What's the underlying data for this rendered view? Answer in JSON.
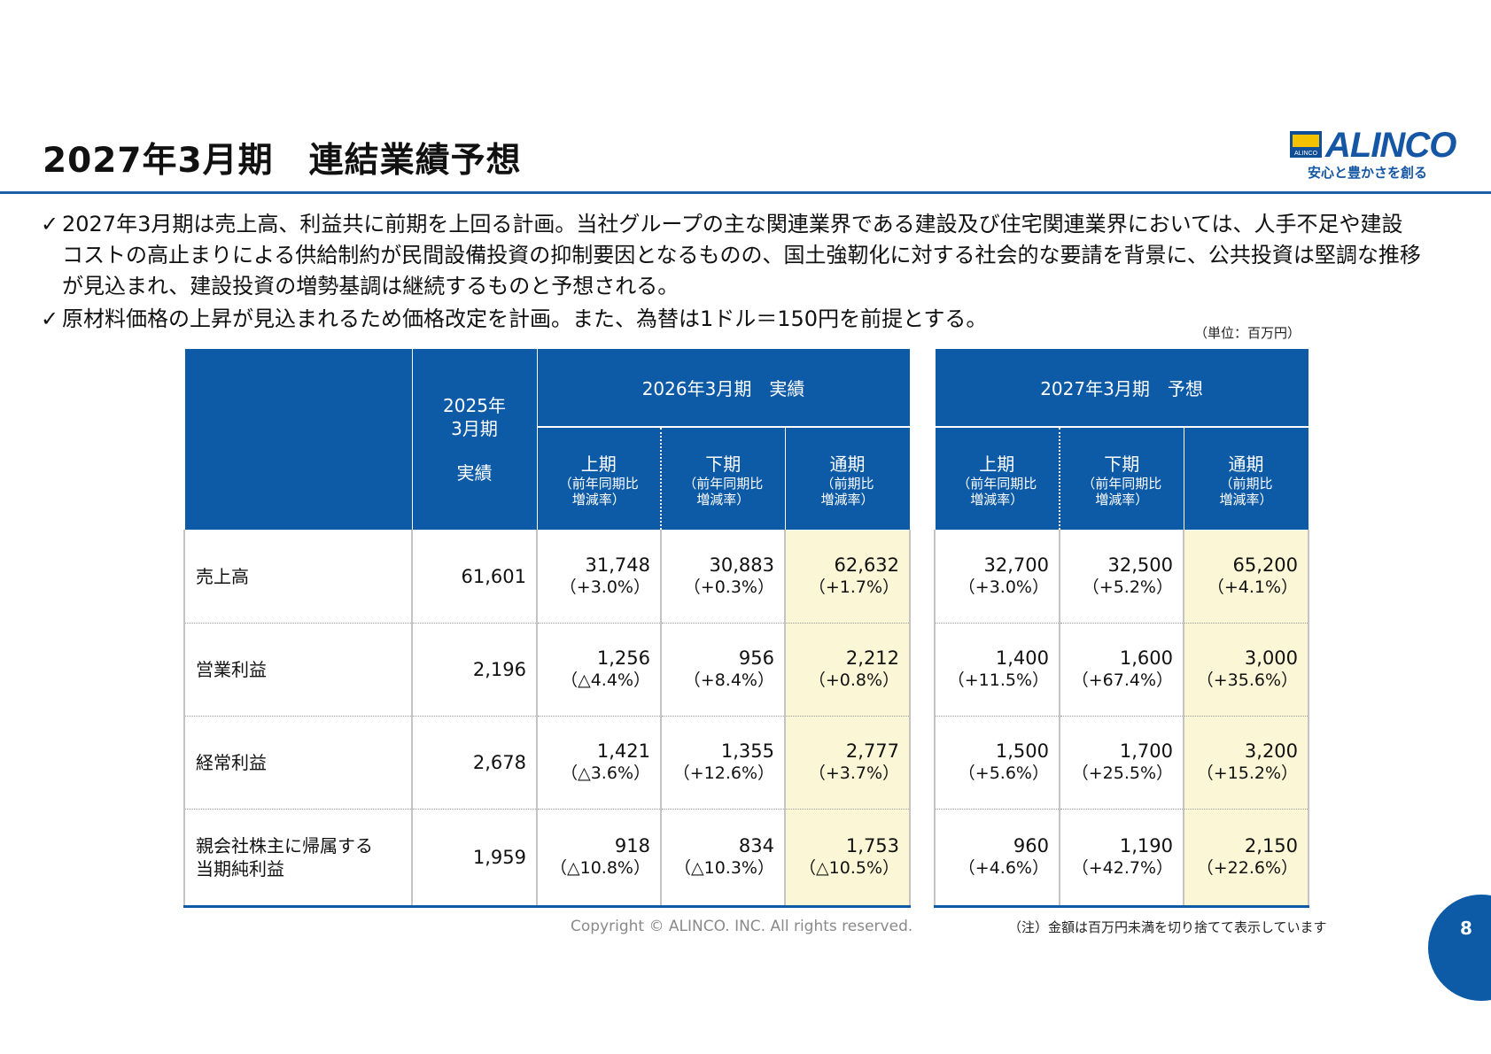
{
  "page": {
    "title": "2027年3月期　連結業績予想",
    "unit_note": "（単位：百万円）",
    "copyright": "Copyright © ALINCO. INC. All rights reserved.",
    "footnote": "（注）金額は百万円未満を切り捨てて表示しています",
    "page_number": "8"
  },
  "logo": {
    "mark_text": "ALINCO",
    "wordmark": "ALINCO",
    "slogan": "安心と豊かさを創る"
  },
  "bullets": [
    {
      "check": "✓",
      "text": "2027年3月期は売上高、利益共に前期を上回る計画。当社グループの主な関連業界である建設及び住宅関連業界においては、人手不足や建設コストの高止まりによる供給制約が民間設備投資の抑制要因となるものの、国土強靭化に対する社会的な要請を背景に、公共投資は堅調な推移が見込まれ、建設投資の増勢基調は継続するものと予想される。"
    },
    {
      "check": "✓",
      "text": "原材料価格の上昇が見込まれるため価格改定を計画。また、為替は1ドル＝150円を前提とする。"
    }
  ],
  "table_left": {
    "col_2025_line1": "2025年",
    "col_2025_line2": "3月期",
    "col_2025_line3": "実績",
    "group_header": "2026年3月期　実績",
    "sub_headers": [
      {
        "main": "上期",
        "note1": "（前年同期比",
        "note2": "増減率）"
      },
      {
        "main": "下期",
        "note1": "（前年同期比",
        "note2": "増減率）"
      },
      {
        "main": "通期",
        "note1": "（前期比",
        "note2": "増減率）"
      }
    ],
    "rows": [
      {
        "label1": "売上高",
        "label2": "",
        "v2025": "61,601",
        "h1": {
          "v": "31,748",
          "r": "（+3.0%）"
        },
        "h2": {
          "v": "30,883",
          "r": "（+0.3%）"
        },
        "fy": {
          "v": "62,632",
          "r": "（+1.7%）"
        }
      },
      {
        "label1": "営業利益",
        "label2": "",
        "v2025": "2,196",
        "h1": {
          "v": "1,256",
          "r": "（△4.4%）"
        },
        "h2": {
          "v": "956",
          "r": "（+8.4%）"
        },
        "fy": {
          "v": "2,212",
          "r": "（+0.8%）"
        }
      },
      {
        "label1": "経常利益",
        "label2": "",
        "v2025": "2,678",
        "h1": {
          "v": "1,421",
          "r": "（△3.6%）"
        },
        "h2": {
          "v": "1,355",
          "r": "（+12.6%）"
        },
        "fy": {
          "v": "2,777",
          "r": "（+3.7%）"
        }
      },
      {
        "label1": "親会社株主に帰属する",
        "label2": "当期純利益",
        "v2025": "1,959",
        "h1": {
          "v": "918",
          "r": "（△10.8%）"
        },
        "h2": {
          "v": "834",
          "r": "（△10.3%）"
        },
        "fy": {
          "v": "1,753",
          "r": "（△10.5%）"
        }
      }
    ]
  },
  "table_right": {
    "group_header": "2027年3月期　予想",
    "sub_headers": [
      {
        "main": "上期",
        "note1": "（前年同期比",
        "note2": "増減率）"
      },
      {
        "main": "下期",
        "note1": "（前年同期比",
        "note2": "増減率）"
      },
      {
        "main": "通期",
        "note1": "（前期比",
        "note2": "増減率）"
      }
    ],
    "rows": [
      {
        "h1": {
          "v": "32,700",
          "r": "（+3.0%）"
        },
        "h2": {
          "v": "32,500",
          "r": "（+5.2%）"
        },
        "fy": {
          "v": "65,200",
          "r": "（+4.1%）"
        }
      },
      {
        "h1": {
          "v": "1,400",
          "r": "（+11.5%）"
        },
        "h2": {
          "v": "1,600",
          "r": "（+67.4%）"
        },
        "fy": {
          "v": "3,000",
          "r": "（+35.6%）"
        }
      },
      {
        "h1": {
          "v": "1,500",
          "r": "（+5.6%）"
        },
        "h2": {
          "v": "1,700",
          "r": "（+25.5%）"
        },
        "fy": {
          "v": "3,200",
          "r": "（+15.2%）"
        }
      },
      {
        "h1": {
          "v": "960",
          "r": "（+4.6%）"
        },
        "h2": {
          "v": "1,190",
          "r": "（+42.7%）"
        },
        "fy": {
          "v": "2,150",
          "r": "（+22.6%）"
        }
      }
    ]
  }
}
